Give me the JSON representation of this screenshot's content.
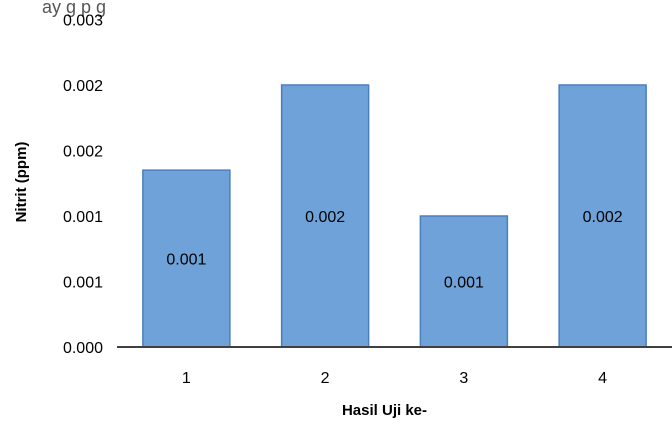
{
  "top_fragment_text": "ay        g                                                              p                            g",
  "chart_data": {
    "type": "bar",
    "title": "",
    "xlabel": "Hasil Uji ke-",
    "ylabel": "Nitrit (ppm)",
    "categories": [
      "1",
      "2",
      "3",
      "4"
    ],
    "values": [
      0.00135,
      0.002,
      0.001,
      0.002
    ],
    "data_labels": [
      "0.001",
      "0.002",
      "0.001",
      "0.002"
    ],
    "ylim": [
      0,
      0.003
    ],
    "yticks": [
      {
        "value": 0.0,
        "label": "0.000"
      },
      {
        "value": 0.0005,
        "label": "0.001"
      },
      {
        "value": 0.001,
        "label": "0.001"
      },
      {
        "value": 0.0015,
        "label": "0.002"
      },
      {
        "value": 0.002,
        "label": "0.002"
      },
      {
        "value": 0.0025,
        "label": "0.003"
      }
    ],
    "grid": false,
    "bar_color": "#6fa2d8",
    "bar_border_color": "#4a7fbd",
    "axis_color": "#404040"
  }
}
